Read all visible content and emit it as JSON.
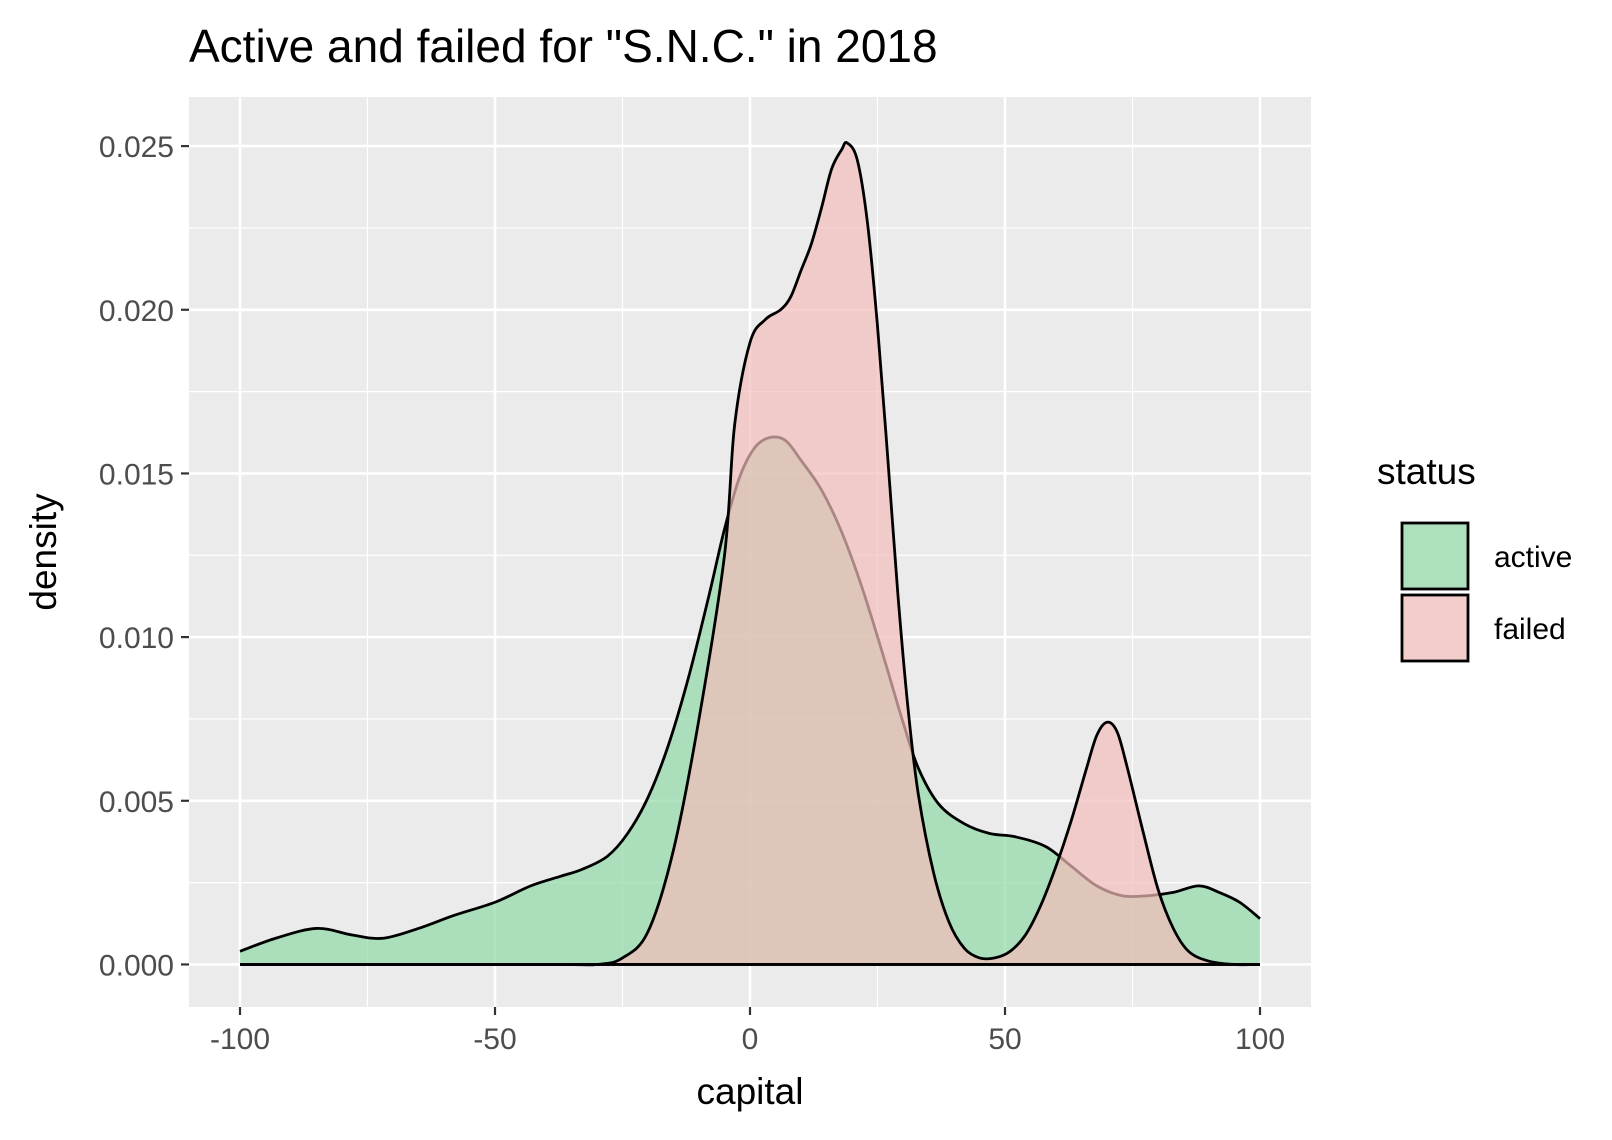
{
  "chart_data": {
    "type": "area",
    "title": "Active and failed for \"S.N.C.\" in 2018",
    "xlabel": "capital",
    "ylabel": "density",
    "xlim": [
      -110,
      110
    ],
    "ylim": [
      -0.0013,
      0.0265
    ],
    "x_ticks": [
      -100,
      -50,
      0,
      50,
      100
    ],
    "x_tick_labels": [
      "-100",
      "-50",
      "0",
      "50",
      "100"
    ],
    "y_ticks": [
      0,
      0.005,
      0.01,
      0.015,
      0.02,
      0.025
    ],
    "y_tick_labels": [
      "0.000",
      "0.005",
      "0.010",
      "0.015",
      "0.020",
      "0.025"
    ],
    "grid": true,
    "legend": {
      "title": "status",
      "position": "right",
      "entries": [
        "active",
        "failed"
      ]
    },
    "series": [
      {
        "name": "active",
        "color": "#90d9a5",
        "x": [
          -100,
          -93,
          -85,
          -78,
          -72,
          -65,
          -58,
          -50,
          -43,
          -37,
          -33,
          -28,
          -24,
          -20,
          -16,
          -12,
          -8,
          -5,
          -2,
          1,
          4,
          7,
          10,
          14,
          18,
          22,
          26,
          30,
          33,
          37,
          42,
          47,
          52,
          58,
          63,
          68,
          73,
          78,
          83,
          88,
          92,
          96,
          100
        ],
        "y": [
          0.0004,
          0.0008,
          0.0011,
          0.0009,
          0.0008,
          0.0011,
          0.0015,
          0.0019,
          0.0024,
          0.0027,
          0.0029,
          0.0033,
          0.004,
          0.0051,
          0.0067,
          0.0088,
          0.0113,
          0.0133,
          0.0149,
          0.0158,
          0.0161,
          0.016,
          0.0154,
          0.0145,
          0.0132,
          0.0115,
          0.0095,
          0.0074,
          0.006,
          0.0049,
          0.0043,
          0.004,
          0.0039,
          0.0036,
          0.003,
          0.0024,
          0.0021,
          0.0021,
          0.0022,
          0.0024,
          0.0022,
          0.0019,
          0.0014
        ]
      },
      {
        "name": "failed",
        "color": "#f4bdbb",
        "x": [
          -100,
          -40,
          -30,
          -25,
          -20,
          -15,
          -10,
          -5,
          -3,
          0,
          3,
          6,
          8,
          10,
          12,
          14,
          16,
          18,
          19,
          21,
          23,
          25,
          27,
          29,
          31,
          33,
          36,
          39,
          42,
          45,
          48,
          51,
          54,
          57,
          60,
          63,
          66,
          68,
          70,
          72,
          74,
          77,
          80,
          83,
          86,
          90,
          95,
          100
        ],
        "y": [
          0,
          0,
          0,
          0.0002,
          0.001,
          0.0035,
          0.0075,
          0.0125,
          0.0165,
          0.019,
          0.0197,
          0.02,
          0.0204,
          0.0212,
          0.022,
          0.0231,
          0.0243,
          0.0249,
          0.0251,
          0.0246,
          0.0227,
          0.0195,
          0.0155,
          0.0113,
          0.0078,
          0.0052,
          0.0028,
          0.0013,
          0.0005,
          0.0002,
          0.0002,
          0.0004,
          0.0009,
          0.0018,
          0.003,
          0.0044,
          0.006,
          0.007,
          0.0074,
          0.0071,
          0.006,
          0.0041,
          0.0023,
          0.0011,
          0.0004,
          0.0001,
          0,
          0
        ]
      }
    ]
  }
}
